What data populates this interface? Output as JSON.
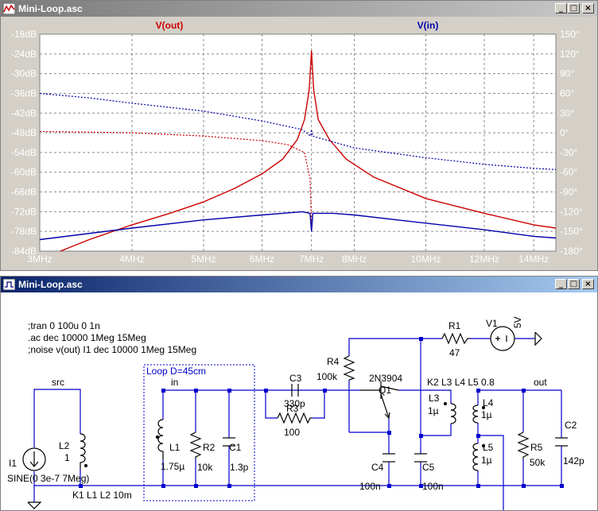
{
  "plot_window": {
    "title": "Mini-Loop.asc",
    "buttons": {
      "minimize": "_",
      "maximize": "□",
      "close": "×"
    }
  },
  "schematic_window": {
    "title": "Mini-Loop.asc",
    "buttons": {
      "minimize": "_",
      "maximize": "□",
      "close": "×"
    }
  },
  "chart_data": {
    "type": "line",
    "title": "",
    "xscale": "log",
    "xlim_hz": [
      3000000,
      15000000
    ],
    "x_ticks": [
      "3MHz",
      "4MHz",
      "5MHz",
      "6MHz",
      "7MHz",
      "8MHz",
      "10MHz",
      "12MHz",
      "14MHz"
    ],
    "x_tick_values_mhz": [
      3,
      4,
      5,
      6,
      7,
      8,
      10,
      12,
      14
    ],
    "y_left_ticks": [
      "-18dB",
      "-24dB",
      "-30dB",
      "-36dB",
      "-42dB",
      "-48dB",
      "-54dB",
      "-60dB",
      "-66dB",
      "-72dB",
      "-78dB",
      "-84dB"
    ],
    "ylim_db": [
      -84,
      -18
    ],
    "y_right_ticks": [
      "150°",
      "120°",
      "90°",
      "60°",
      "30°",
      "0°",
      "-30°",
      "-60°",
      "-90°",
      "-120°",
      "-150°",
      "-180°"
    ],
    "ylim_deg": [
      -180,
      150
    ],
    "grid": true,
    "legend": [
      {
        "name": "V(out)",
        "color": "#cc0000",
        "placement": "top-left"
      },
      {
        "name": "V(in)",
        "color": "#0000aa",
        "placement": "top-right"
      }
    ],
    "series": [
      {
        "name": "V(out)",
        "quantity": "magnitude",
        "color": "#cc0000",
        "style": "solid",
        "points_mhz_db": [
          [
            3.2,
            -84
          ],
          [
            3.5,
            -80.5
          ],
          [
            4.0,
            -76
          ],
          [
            4.5,
            -72.5
          ],
          [
            5.0,
            -69
          ],
          [
            5.5,
            -65
          ],
          [
            6.0,
            -60.5
          ],
          [
            6.4,
            -56
          ],
          [
            6.7,
            -50
          ],
          [
            6.85,
            -44
          ],
          [
            6.95,
            -35
          ],
          [
            6.98,
            -28
          ],
          [
            7.0,
            -23
          ],
          [
            7.02,
            -28
          ],
          [
            7.05,
            -35
          ],
          [
            7.15,
            -44
          ],
          [
            7.4,
            -50
          ],
          [
            7.8,
            -56
          ],
          [
            8.5,
            -61.5
          ],
          [
            10.0,
            -68
          ],
          [
            12.0,
            -72.5
          ],
          [
            14.0,
            -76
          ],
          [
            15.0,
            -77
          ]
        ]
      },
      {
        "name": "V(out)",
        "quantity": "phase",
        "color": "#cc0000",
        "style": "dashed",
        "points_mhz_deg": [
          [
            3.0,
            2
          ],
          [
            4.0,
            0
          ],
          [
            5.0,
            -5
          ],
          [
            6.0,
            -12
          ],
          [
            6.5,
            -18
          ],
          [
            6.85,
            -30
          ],
          [
            6.97,
            -70
          ],
          [
            7.0,
            -140
          ]
        ]
      },
      {
        "name": "V(in)",
        "quantity": "magnitude",
        "color": "#0000aa",
        "style": "solid",
        "points_mhz_db": [
          [
            3.0,
            -80.5
          ],
          [
            4.0,
            -77
          ],
          [
            5.0,
            -74.5
          ],
          [
            6.0,
            -73
          ],
          [
            6.8,
            -72
          ],
          [
            6.97,
            -72.5
          ],
          [
            7.0,
            -78
          ],
          [
            7.03,
            -72.5
          ],
          [
            7.5,
            -72.5
          ],
          [
            8.0,
            -73
          ],
          [
            10.0,
            -75.5
          ],
          [
            12.0,
            -77.5
          ],
          [
            14.0,
            -79.5
          ],
          [
            15.0,
            -80
          ]
        ]
      },
      {
        "name": "V(in)",
        "quantity": "phase",
        "color": "#0000aa",
        "style": "dashed",
        "points_mhz_deg": [
          [
            3.0,
            60
          ],
          [
            3.5,
            53
          ],
          [
            4.0,
            45
          ],
          [
            5.0,
            33
          ],
          [
            6.0,
            18
          ],
          [
            6.8,
            5
          ],
          [
            6.98,
            -5
          ],
          [
            7.0,
            5
          ],
          [
            7.02,
            -5
          ],
          [
            8.0,
            -23
          ],
          [
            10.0,
            -38
          ],
          [
            12.0,
            -48
          ],
          [
            14.0,
            -54
          ],
          [
            15.0,
            -56
          ]
        ]
      }
    ]
  },
  "schematic": {
    "directives": [
      ";tran 0 100u 0 1n",
      ".ac dec 10000 1Meg 15Meg",
      ";noise v(out) I1 dec 10000 1Meg 15Meg"
    ],
    "loop_box_label": "Loop D=45cm",
    "labels": {
      "src": "src",
      "in": "in",
      "out": "out",
      "i1_name": "I1",
      "i1_value": "SINE(0 3e-7 7Meg)",
      "l2_name": "L2",
      "l2_value": "1",
      "l1_name": "L1",
      "l1_value": "1.75µ",
      "r2_name": "R2",
      "r2_value": "10k",
      "c1_name": "C1",
      "c1_value": "1.3p",
      "c3_name": "C3",
      "c3_value": "330p",
      "r3_name": "R3",
      "r3_value": "100",
      "r4_name": "R4",
      "r4_value": "100k",
      "q1_model": "2N3904",
      "q1_name": "Q1",
      "r1_name": "R1",
      "r1_value": "47",
      "v1_name": "V1",
      "v1_value": "5V",
      "c4_name": "C4",
      "c4_value": "100n",
      "c5_name": "C5",
      "c5_value": "100n",
      "l3_name": "L3",
      "l3_value": "1µ",
      "l4_name": "L4",
      "l4_value": "1µ",
      "l5_name": "L5",
      "l5_value": "1µ",
      "r5_name": "R5",
      "r5_value": "50k",
      "c2_name": "C2",
      "c2_value": "142p",
      "k1": "K1 L1 L2 10m",
      "k2": "K2 L3 L4 L5 0.8"
    }
  }
}
